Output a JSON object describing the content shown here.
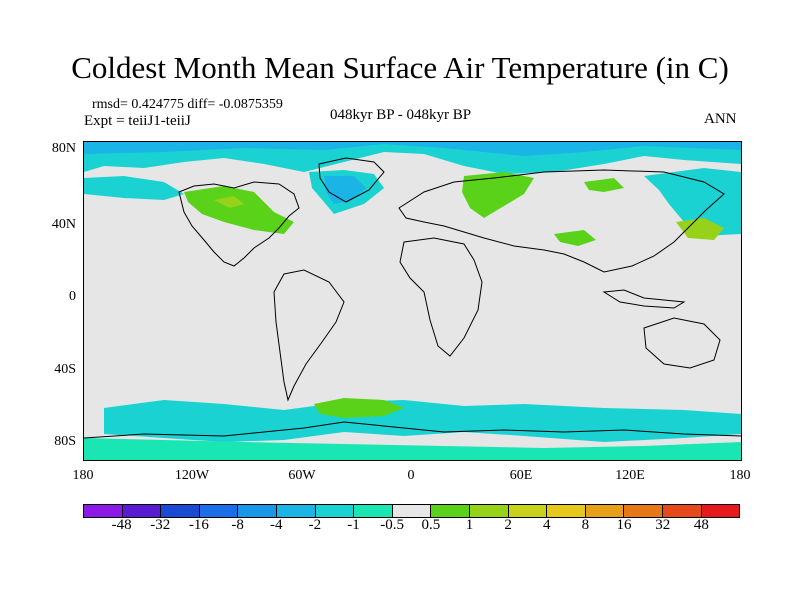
{
  "title": "Coldest Month Mean Surface Air Temperature (in C)",
  "stats": "rmsd= 0.424775  diff= -0.0875359",
  "expt": "Expt = teiiJ1-teiiJ",
  "period": "048kyr BP - 048kyr BP",
  "season": "ANN",
  "y_axis_labels": [
    "80N",
    "40N",
    "0",
    "40S",
    "80S"
  ],
  "x_axis_labels": [
    "180",
    "120W",
    "60W",
    "0",
    "60E",
    "120E",
    "180"
  ],
  "colorbar": {
    "colors": [
      "#8c1ae6",
      "#5a1ad2",
      "#1a4ad2",
      "#1a6ee6",
      "#1a96e6",
      "#1ab4e6",
      "#1ad2d2",
      "#1ae6b4",
      "#e6e6e6",
      "#5ad21a",
      "#96d21a",
      "#c8d21a",
      "#e6c81a",
      "#e6a01a",
      "#e6781a",
      "#e64a1a",
      "#e61a1a"
    ],
    "labels": [
      "-48",
      "-32",
      "-16",
      "-8",
      "-4",
      "-2",
      "-1",
      "-0.5",
      "0.5",
      "1",
      "2",
      "4",
      "8",
      "16",
      "32",
      "48"
    ]
  }
}
